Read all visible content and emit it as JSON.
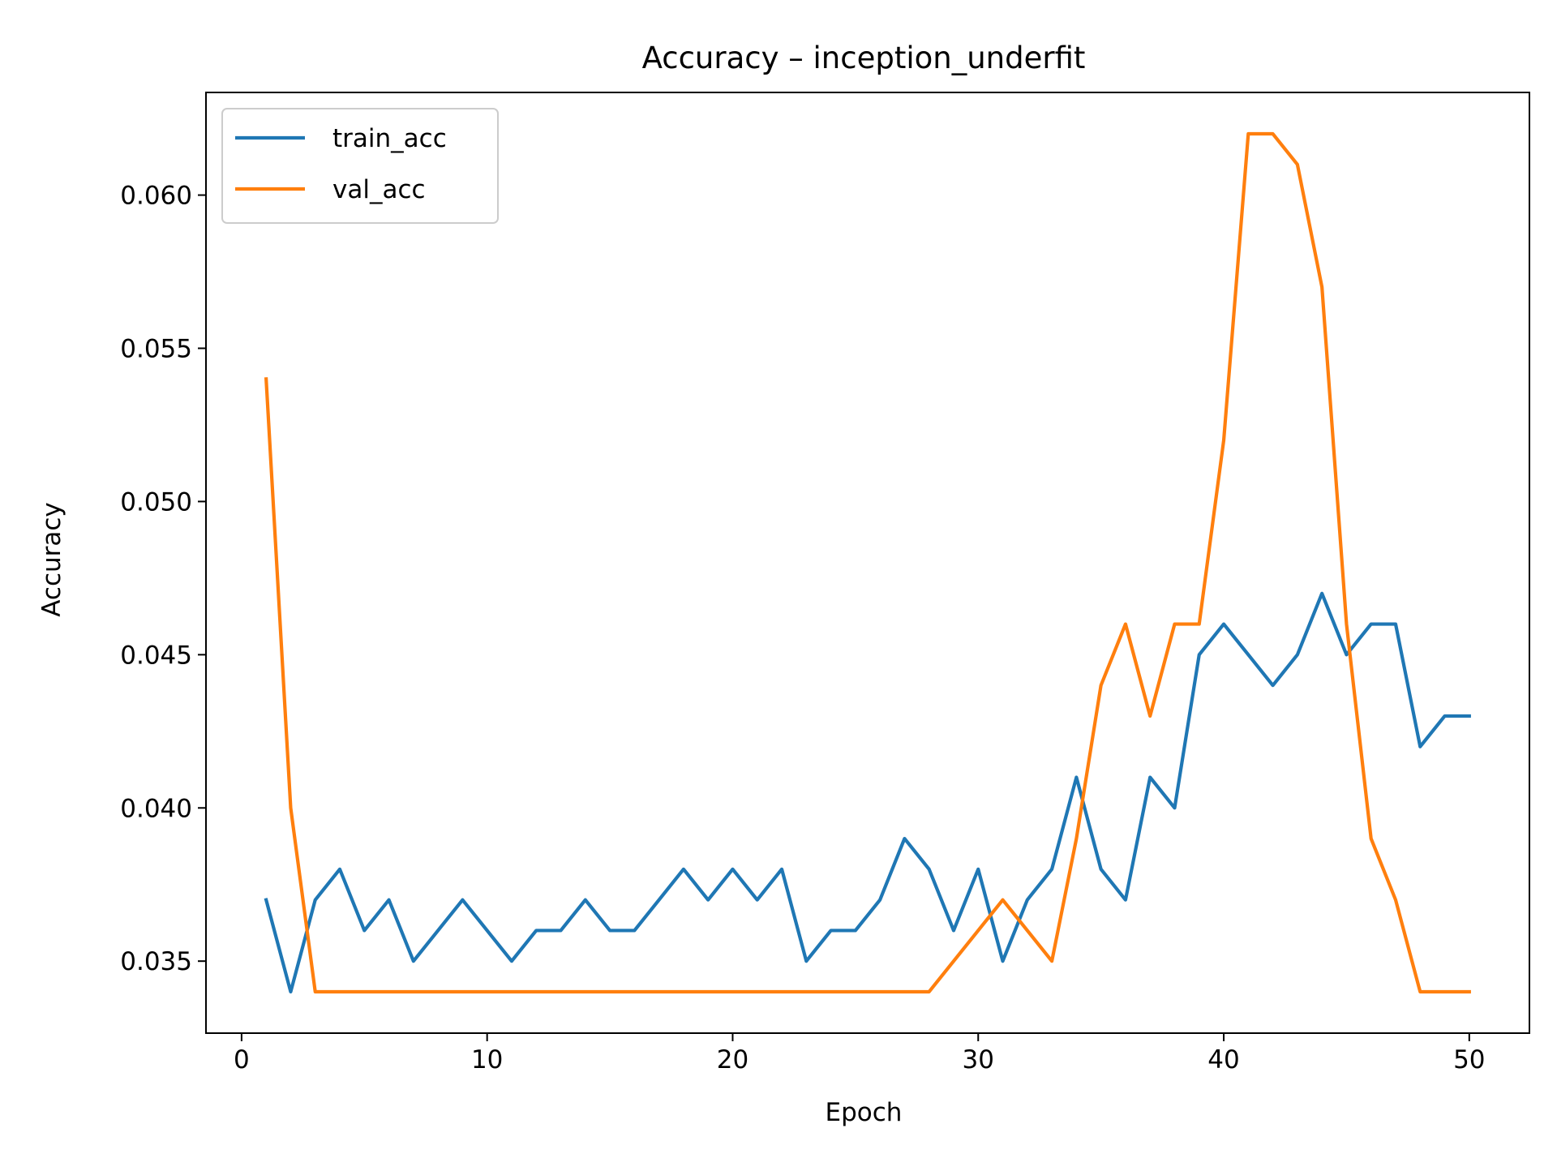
{
  "chart_data": {
    "type": "line",
    "title": "Accuracy – inception_underfit",
    "xlabel": "Epoch",
    "ylabel": "Accuracy",
    "xlim": [
      -1.45,
      52.45
    ],
    "ylim": [
      0.03265,
      0.06335
    ],
    "xticks": [
      0,
      10,
      20,
      30,
      40,
      50
    ],
    "xtick_labels": [
      "0",
      "10",
      "20",
      "30",
      "40",
      "50"
    ],
    "yticks": [
      0.035,
      0.04,
      0.045,
      0.05,
      0.055,
      0.06
    ],
    "ytick_labels": [
      "0.035",
      "0.040",
      "0.045",
      "0.050",
      "0.055",
      "0.060"
    ],
    "grid": false,
    "legend_position": "upper-left",
    "x": [
      1,
      2,
      3,
      4,
      5,
      6,
      7,
      8,
      9,
      10,
      11,
      12,
      13,
      14,
      15,
      16,
      17,
      18,
      19,
      20,
      21,
      22,
      23,
      24,
      25,
      26,
      27,
      28,
      29,
      30,
      31,
      32,
      33,
      34,
      35,
      36,
      37,
      38,
      39,
      40,
      41,
      42,
      43,
      44,
      45,
      46,
      47,
      48,
      49,
      50
    ],
    "series": [
      {
        "name": "train_acc",
        "color": "#1f77b4",
        "values": [
          0.037,
          0.034,
          0.037,
          0.038,
          0.036,
          0.037,
          0.035,
          0.036,
          0.037,
          0.036,
          0.035,
          0.036,
          0.036,
          0.037,
          0.036,
          0.036,
          0.037,
          0.038,
          0.037,
          0.038,
          0.037,
          0.038,
          0.035,
          0.036,
          0.036,
          0.037,
          0.039,
          0.038,
          0.036,
          0.038,
          0.035,
          0.037,
          0.038,
          0.041,
          0.038,
          0.037,
          0.041,
          0.04,
          0.045,
          0.046,
          0.045,
          0.044,
          0.045,
          0.047,
          0.045,
          0.046,
          0.046,
          0.042,
          0.043,
          0.043
        ]
      },
      {
        "name": "val_acc",
        "color": "#ff7f0e",
        "values": [
          0.054,
          0.04,
          0.034,
          0.034,
          0.034,
          0.034,
          0.034,
          0.034,
          0.034,
          0.034,
          0.034,
          0.034,
          0.034,
          0.034,
          0.034,
          0.034,
          0.034,
          0.034,
          0.034,
          0.034,
          0.034,
          0.034,
          0.034,
          0.034,
          0.034,
          0.034,
          0.034,
          0.034,
          0.035,
          0.036,
          0.037,
          0.036,
          0.035,
          0.039,
          0.044,
          0.046,
          0.043,
          0.046,
          0.046,
          0.052,
          0.062,
          0.062,
          0.061,
          0.057,
          0.046,
          0.039,
          0.037,
          0.034,
          0.034,
          0.034
        ]
      }
    ]
  }
}
